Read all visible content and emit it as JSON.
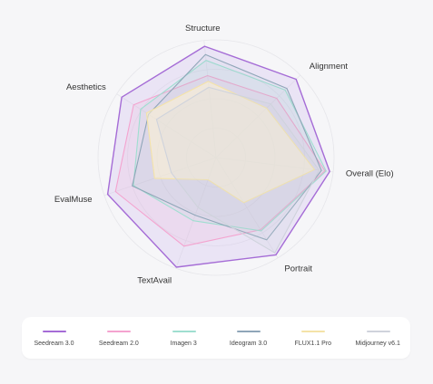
{
  "chart_data": {
    "type": "radar",
    "axes": [
      "Overall (Elo)",
      "Portrait",
      "TextAvail",
      "EvalMuse",
      "Aesthetics",
      "Structure",
      "Alignment"
    ],
    "rmax": 100,
    "grid": true,
    "legend_position": "bottom",
    "series": [
      {
        "name": "Seedream 3.0",
        "color": "#a56cd6",
        "fill": "#cdb6ee",
        "fillOpacity": 0.28,
        "values": [
          97,
          97,
          99,
          97,
          95,
          95,
          95
        ]
      },
      {
        "name": "Seedream 2.0",
        "color": "#f4a3cf",
        "fill": "#f4a3cf",
        "fillOpacity": 0.14,
        "values": [
          93,
          72,
          80,
          90,
          83,
          70,
          72
        ]
      },
      {
        "name": "Imagen 3",
        "color": "#9fded0",
        "fill": "#9fded0",
        "fillOpacity": 0.12,
        "values": [
          94,
          73,
          57,
          74,
          76,
          83,
          82
        ]
      },
      {
        "name": "Ideogram 3.0",
        "color": "#8fa6b8",
        "fill": "#8fa6b8",
        "fillOpacity": 0.06,
        "values": [
          90,
          82,
          52,
          75,
          68,
          88,
          84
        ]
      },
      {
        "name": "FLUX1.1 Pro",
        "color": "#f4e3a8",
        "fill": "#fbf1d3",
        "fillOpacity": 0.6,
        "values": [
          84,
          45,
          20,
          55,
          70,
          65,
          60
        ]
      },
      {
        "name": "Midjourney v6.1",
        "color": "#cfd3dc",
        "fill": "#cfd3dc",
        "fillOpacity": 0.18,
        "values": [
          88,
          95,
          45,
          40,
          60,
          60,
          65
        ]
      }
    ]
  }
}
